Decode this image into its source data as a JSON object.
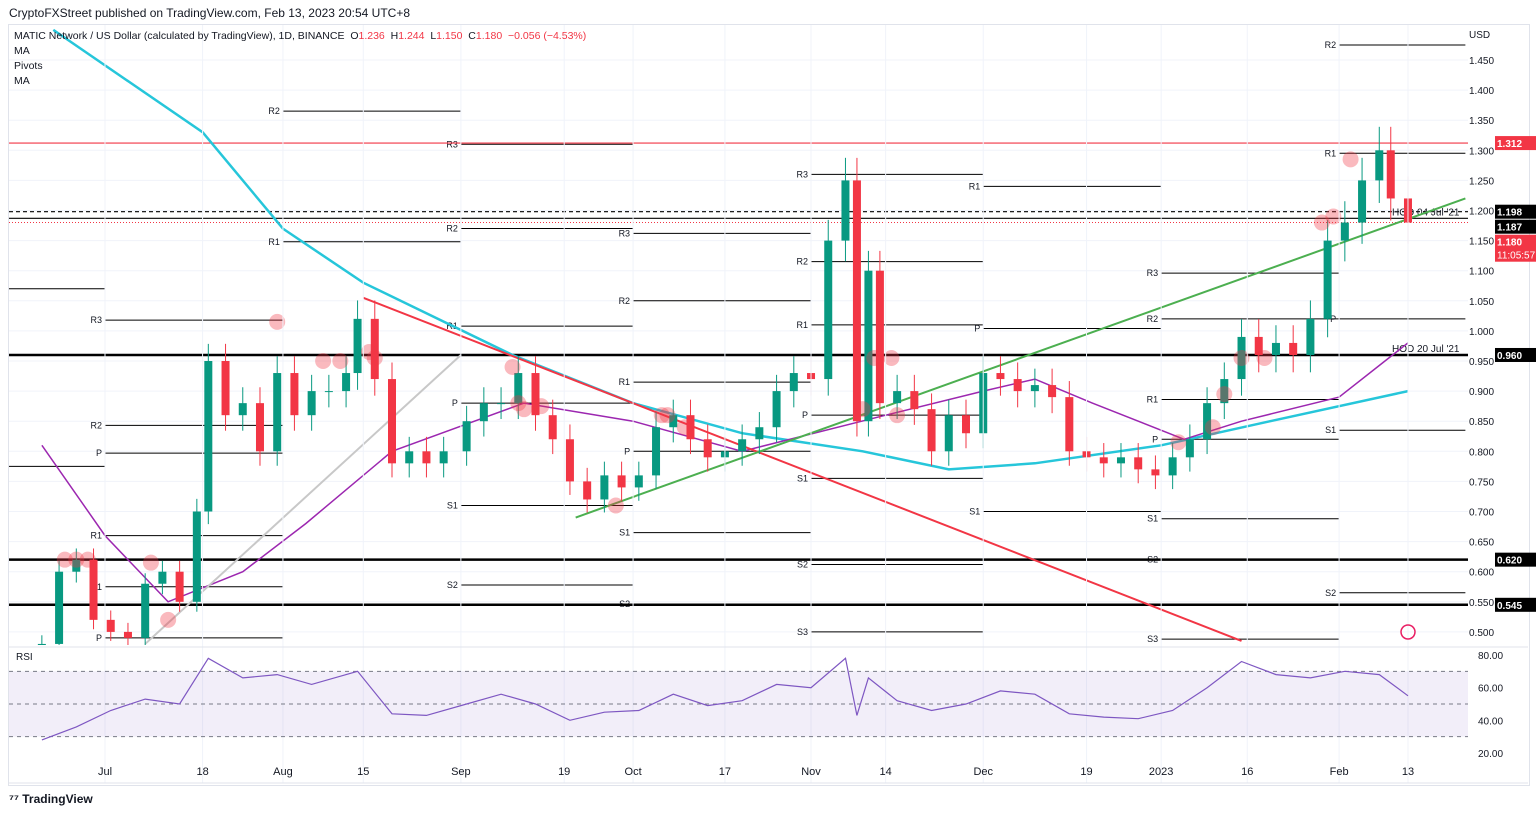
{
  "header": {
    "published": "CryptoFXStreet published on TradingView.com, Feb 13, 2023 20:54 UTC+8",
    "symbol": "MATIC Network / US Dollar (calculated by TradingView), 1D, BINANCE",
    "o_label": "O",
    "o": "1.236",
    "h_label": "H",
    "h": "1.244",
    "l_label": "L",
    "l": "1.150",
    "c_label": "C",
    "c": "1.180",
    "change": "−0.056 (−4.53%)",
    "indicators": [
      "MA",
      "Pivots",
      "MA"
    ]
  },
  "footer": {
    "logo": "TradingView"
  },
  "chart_data": {
    "type": "candlestick",
    "currency": "USD",
    "price_ticks": [
      "1.450",
      "1.400",
      "1.350",
      "1.300",
      "1.250",
      "1.200",
      "1.150",
      "1.100",
      "1.050",
      "1.000",
      "0.950",
      "0.900",
      "0.850",
      "0.800",
      "0.750",
      "0.700",
      "0.650",
      "0.600",
      "0.550",
      "0.500"
    ],
    "ylim": [
      0.49,
      1.52
    ],
    "time_ticks": [
      [
        "Jul",
        "2022-07-01"
      ],
      [
        "18",
        "2022-07-18"
      ],
      [
        "Aug",
        "2022-08-01"
      ],
      [
        "15",
        "2022-08-15"
      ],
      [
        "Sep",
        "2022-09-01"
      ],
      [
        "19",
        "2022-09-19"
      ],
      [
        "Oct",
        "2022-10-01"
      ],
      [
        "17",
        "2022-10-17"
      ],
      [
        "Nov",
        "2022-11-01"
      ],
      [
        "14",
        "2022-11-14"
      ],
      [
        "Dec",
        "2022-12-01"
      ],
      [
        "19",
        "2022-12-19"
      ],
      [
        "2023",
        "2023-01-01"
      ],
      [
        "16",
        "2023-01-16"
      ],
      [
        "Feb",
        "2023-02-01"
      ],
      [
        "13",
        "2023-02-13"
      ]
    ],
    "closes": [
      [
        "2022-06-20",
        0.48
      ],
      [
        "2022-06-23",
        0.6
      ],
      [
        "2022-06-26",
        0.62
      ],
      [
        "2022-06-29",
        0.52
      ],
      [
        "2022-07-02",
        0.5
      ],
      [
        "2022-07-05",
        0.49
      ],
      [
        "2022-07-08",
        0.58
      ],
      [
        "2022-07-11",
        0.6
      ],
      [
        "2022-07-14",
        0.55
      ],
      [
        "2022-07-17",
        0.7
      ],
      [
        "2022-07-19",
        0.95
      ],
      [
        "2022-07-22",
        0.86
      ],
      [
        "2022-07-25",
        0.88
      ],
      [
        "2022-07-28",
        0.8
      ],
      [
        "2022-07-31",
        0.93
      ],
      [
        "2022-08-03",
        0.86
      ],
      [
        "2022-08-06",
        0.9
      ],
      [
        "2022-08-09",
        0.9
      ],
      [
        "2022-08-12",
        0.93
      ],
      [
        "2022-08-14",
        1.02
      ],
      [
        "2022-08-17",
        0.92
      ],
      [
        "2022-08-20",
        0.78
      ],
      [
        "2022-08-23",
        0.8
      ],
      [
        "2022-08-26",
        0.78
      ],
      [
        "2022-08-29",
        0.8
      ],
      [
        "2022-09-02",
        0.85
      ],
      [
        "2022-09-05",
        0.88
      ],
      [
        "2022-09-08",
        0.88
      ],
      [
        "2022-09-11",
        0.93
      ],
      [
        "2022-09-14",
        0.86
      ],
      [
        "2022-09-17",
        0.82
      ],
      [
        "2022-09-20",
        0.75
      ],
      [
        "2022-09-23",
        0.72
      ],
      [
        "2022-09-26",
        0.76
      ],
      [
        "2022-09-29",
        0.74
      ],
      [
        "2022-10-02",
        0.76
      ],
      [
        "2022-10-05",
        0.84
      ],
      [
        "2022-10-08",
        0.86
      ],
      [
        "2022-10-11",
        0.82
      ],
      [
        "2022-10-14",
        0.79
      ],
      [
        "2022-10-17",
        0.8
      ],
      [
        "2022-10-20",
        0.82
      ],
      [
        "2022-10-23",
        0.84
      ],
      [
        "2022-10-26",
        0.9
      ],
      [
        "2022-10-29",
        0.93
      ],
      [
        "2022-11-01",
        0.92
      ],
      [
        "2022-11-04",
        1.15
      ],
      [
        "2022-11-07",
        1.25
      ],
      [
        "2022-11-09",
        0.85
      ],
      [
        "2022-11-11",
        1.1
      ],
      [
        "2022-11-13",
        0.88
      ],
      [
        "2022-11-16",
        0.9
      ],
      [
        "2022-11-19",
        0.87
      ],
      [
        "2022-11-22",
        0.8
      ],
      [
        "2022-11-25",
        0.86
      ],
      [
        "2022-11-28",
        0.83
      ],
      [
        "2022-12-01",
        0.93
      ],
      [
        "2022-12-04",
        0.92
      ],
      [
        "2022-12-07",
        0.9
      ],
      [
        "2022-12-10",
        0.91
      ],
      [
        "2022-12-13",
        0.89
      ],
      [
        "2022-12-16",
        0.8
      ],
      [
        "2022-12-19",
        0.79
      ],
      [
        "2022-12-22",
        0.78
      ],
      [
        "2022-12-25",
        0.79
      ],
      [
        "2022-12-28",
        0.77
      ],
      [
        "2022-12-31",
        0.76
      ],
      [
        "2023-01-03",
        0.79
      ],
      [
        "2023-01-06",
        0.82
      ],
      [
        "2023-01-09",
        0.88
      ],
      [
        "2023-01-12",
        0.92
      ],
      [
        "2023-01-15",
        0.99
      ],
      [
        "2023-01-18",
        0.96
      ],
      [
        "2023-01-21",
        0.98
      ],
      [
        "2023-01-24",
        0.96
      ],
      [
        "2023-01-27",
        1.02
      ],
      [
        "2023-01-30",
        1.15
      ],
      [
        "2023-02-02",
        1.18
      ],
      [
        "2023-02-05",
        1.25
      ],
      [
        "2023-02-08",
        1.3
      ],
      [
        "2023-02-10",
        1.22
      ],
      [
        "2023-02-13",
        1.18
      ]
    ],
    "ma_purple": [
      [
        "2022-06-20",
        0.81
      ],
      [
        "2022-07-01",
        0.66
      ],
      [
        "2022-07-12",
        0.55
      ],
      [
        "2022-07-25",
        0.6
      ],
      [
        "2022-08-05",
        0.68
      ],
      [
        "2022-08-20",
        0.8
      ],
      [
        "2022-09-12",
        0.88
      ],
      [
        "2022-10-01",
        0.85
      ],
      [
        "2022-10-20",
        0.8
      ],
      [
        "2022-11-14",
        0.86
      ],
      [
        "2022-12-01",
        0.9
      ],
      [
        "2022-12-10",
        0.92
      ],
      [
        "2022-12-20",
        0.88
      ],
      [
        "2023-01-05",
        0.82
      ],
      [
        "2023-01-15",
        0.85
      ],
      [
        "2023-02-01",
        0.89
      ],
      [
        "2023-02-13",
        0.98
      ]
    ],
    "ma_cyan": [
      [
        "2022-06-22",
        1.5
      ],
      [
        "2022-07-18",
        1.33
      ],
      [
        "2022-08-01",
        1.17
      ],
      [
        "2022-08-15",
        1.08
      ],
      [
        "2022-09-10",
        0.96
      ],
      [
        "2022-10-01",
        0.88
      ],
      [
        "2022-10-20",
        0.83
      ],
      [
        "2022-11-10",
        0.8
      ],
      [
        "2022-11-25",
        0.77
      ],
      [
        "2022-12-10",
        0.78
      ],
      [
        "2023-01-01",
        0.81
      ],
      [
        "2023-01-20",
        0.85
      ],
      [
        "2023-02-13",
        0.9
      ]
    ],
    "levels": [
      {
        "value": 1.312,
        "label": "1.312",
        "color": "#f23645",
        "style": "solid"
      },
      {
        "value": 1.198,
        "label": "1.198",
        "color": "#000000",
        "style": "dashed"
      },
      {
        "value": 1.187,
        "label": "1.187",
        "color": "#000000",
        "style": "solid",
        "note": "HOD 04 Jul '21"
      },
      {
        "value": 0.96,
        "label": "0.960",
        "color": "#000000",
        "style": "thick",
        "note": "HOD 20 Jul '21"
      },
      {
        "value": 0.62,
        "label": "0.620",
        "color": "#000000",
        "style": "thick"
      },
      {
        "value": 0.545,
        "label": "0.545",
        "color": "#000000",
        "style": "thick"
      }
    ],
    "last_price": {
      "value": 1.18,
      "label": "1.180",
      "countdown": "11:05:57",
      "color": "#f23645"
    },
    "trendlines": [
      {
        "color": "#f23645",
        "from": [
          "2022-08-15",
          1.055
        ],
        "to": [
          "2023-01-15",
          0.485
        ]
      },
      {
        "color": "#4caf50",
        "from": [
          "2022-09-21",
          0.69
        ],
        "to": [
          "2023-02-23",
          1.22
        ]
      },
      {
        "color": "#c8c8c8",
        "from": [
          "2022-07-08",
          0.48
        ],
        "to": [
          "2022-09-01",
          0.96
        ]
      }
    ],
    "pivots": [
      {
        "from": "2022-06-10",
        "to": "2022-07-01",
        "levels": [
          [
            "",
            1.07
          ],
          [
            "",
            0.775
          ]
        ]
      },
      {
        "from": "2022-07-01",
        "to": "2022-08-01",
        "levels": [
          [
            "R3",
            1.018
          ],
          [
            "R2",
            0.843
          ],
          [
            "P",
            0.797
          ],
          [
            "R1",
            0.66
          ],
          [
            "S1",
            0.575
          ],
          [
            "P",
            0.49
          ]
        ]
      },
      {
        "from": "2022-08-01",
        "to": "2022-09-01",
        "levels": [
          [
            "R2",
            1.365
          ],
          [
            "R1",
            1.148
          ]
        ]
      },
      {
        "from": "2022-09-01",
        "to": "2022-10-01",
        "levels": [
          [
            "R3",
            1.31
          ],
          [
            "R2",
            1.17
          ],
          [
            "R1",
            1.008
          ],
          [
            "P",
            0.88
          ],
          [
            "S1",
            0.71
          ],
          [
            "S2",
            0.578
          ]
        ]
      },
      {
        "from": "2022-10-01",
        "to": "2022-11-01",
        "levels": [
          [
            "R3",
            1.162
          ],
          [
            "R2",
            1.05
          ],
          [
            "R1",
            0.915
          ],
          [
            "P",
            0.8
          ],
          [
            "S1",
            0.665
          ],
          [
            "S2",
            0.546
          ]
        ]
      },
      {
        "from": "2022-11-01",
        "to": "2022-12-01",
        "levels": [
          [
            "R3",
            1.26
          ],
          [
            "R2",
            1.115
          ],
          [
            "R1",
            1.01
          ],
          [
            "P",
            0.86
          ],
          [
            "S1",
            0.755
          ],
          [
            "S2",
            0.612
          ],
          [
            "S3",
            0.5
          ]
        ]
      },
      {
        "from": "2022-12-01",
        "to": "2023-01-01",
        "levels": [
          [
            "R1",
            1.24
          ],
          [
            "P",
            1.004
          ],
          [
            "S1",
            0.7
          ]
        ]
      },
      {
        "from": "2023-01-01",
        "to": "2023-02-01",
        "levels": [
          [
            "R3",
            1.096
          ],
          [
            "R2",
            1.02
          ],
          [
            "R1",
            0.886
          ],
          [
            "P",
            0.82
          ],
          [
            "S1",
            0.688
          ],
          [
            "S2",
            0.62
          ],
          [
            "S3",
            0.488
          ]
        ]
      },
      {
        "from": "2023-02-01",
        "to": "2023-02-23",
        "levels": [
          [
            "R2",
            1.475
          ],
          [
            "R1",
            1.295
          ],
          [
            "P",
            1.02
          ],
          [
            "S1",
            0.835
          ],
          [
            "S2",
            0.565
          ]
        ]
      }
    ],
    "touches": [
      [
        "2022-06-24",
        0.62
      ],
      [
        "2022-06-26",
        0.62
      ],
      [
        "2022-06-28",
        0.62
      ],
      [
        "2022-07-09",
        0.615
      ],
      [
        "2022-07-12",
        0.52
      ],
      [
        "2022-07-31",
        1.015
      ],
      [
        "2022-08-08",
        0.95
      ],
      [
        "2022-08-11",
        0.95
      ],
      [
        "2022-08-16",
        0.965
      ],
      [
        "2022-08-17",
        0.955
      ],
      [
        "2022-09-10",
        0.94
      ],
      [
        "2022-09-11",
        0.88
      ],
      [
        "2022-09-12",
        0.87
      ],
      [
        "2022-09-15",
        0.875
      ],
      [
        "2022-09-28",
        0.71
      ],
      [
        "2022-10-06",
        0.86
      ],
      [
        "2022-10-07",
        0.86
      ],
      [
        "2022-10-10",
        0.84
      ],
      [
        "2022-11-10",
        0.87
      ],
      [
        "2022-11-12",
        0.955
      ],
      [
        "2022-11-15",
        0.955
      ],
      [
        "2022-11-16",
        0.86
      ],
      [
        "2023-01-04",
        0.815
      ],
      [
        "2023-01-10",
        0.84
      ],
      [
        "2023-01-12",
        0.895
      ],
      [
        "2023-01-15",
        0.955
      ],
      [
        "2023-01-19",
        0.955
      ],
      [
        "2023-01-29",
        1.18
      ],
      [
        "2023-01-31",
        1.19
      ],
      [
        "2023-02-03",
        1.285
      ]
    ],
    "rsi": {
      "label": "RSI",
      "ticks": [
        "80.00",
        "60.00",
        "40.00",
        "20.00"
      ],
      "band": [
        30,
        70
      ],
      "mid": 50,
      "values": [
        [
          "2022-06-20",
          28
        ],
        [
          "2022-06-26",
          36
        ],
        [
          "2022-07-02",
          46
        ],
        [
          "2022-07-08",
          53
        ],
        [
          "2022-07-14",
          50
        ],
        [
          "2022-07-19",
          78
        ],
        [
          "2022-07-25",
          66
        ],
        [
          "2022-07-31",
          68
        ],
        [
          "2022-08-06",
          62
        ],
        [
          "2022-08-14",
          70
        ],
        [
          "2022-08-20",
          44
        ],
        [
          "2022-08-26",
          43
        ],
        [
          "2022-09-02",
          50
        ],
        [
          "2022-09-08",
          56
        ],
        [
          "2022-09-14",
          50
        ],
        [
          "2022-09-20",
          40
        ],
        [
          "2022-09-26",
          45
        ],
        [
          "2022-10-02",
          46
        ],
        [
          "2022-10-08",
          56
        ],
        [
          "2022-10-14",
          49
        ],
        [
          "2022-10-20",
          52
        ],
        [
          "2022-10-26",
          62
        ],
        [
          "2022-11-01",
          60
        ],
        [
          "2022-11-07",
          78
        ],
        [
          "2022-11-09",
          43
        ],
        [
          "2022-11-11",
          66
        ],
        [
          "2022-11-16",
          52
        ],
        [
          "2022-11-22",
          46
        ],
        [
          "2022-11-28",
          50
        ],
        [
          "2022-12-04",
          58
        ],
        [
          "2022-12-10",
          56
        ],
        [
          "2022-12-16",
          44
        ],
        [
          "2022-12-22",
          42
        ],
        [
          "2022-12-28",
          41
        ],
        [
          "2023-01-03",
          46
        ],
        [
          "2023-01-09",
          60
        ],
        [
          "2023-01-15",
          76
        ],
        [
          "2023-01-21",
          68
        ],
        [
          "2023-01-27",
          66
        ],
        [
          "2023-02-02",
          70
        ],
        [
          "2023-02-08",
          68
        ],
        [
          "2023-02-13",
          55
        ]
      ]
    }
  }
}
